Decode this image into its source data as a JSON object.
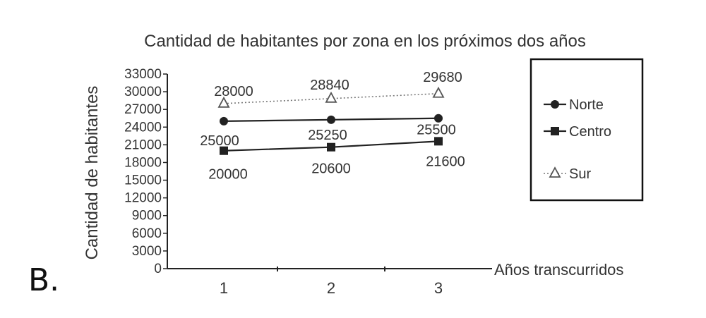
{
  "option_letter": "B.",
  "chart_data": {
    "type": "line",
    "title": "Cantidad de habitantes por zona en los próximos dos años",
    "xlabel": "Años transcurridos",
    "ylabel": "Cantidad de habitantes",
    "categories": [
      "1",
      "2",
      "3"
    ],
    "ylim": [
      0,
      33000
    ],
    "yticks": [
      "0",
      "3000",
      "6000",
      "9000",
      "12000",
      "15000",
      "18000",
      "21000",
      "24000",
      "27000",
      "30000",
      "33000"
    ],
    "grid": false,
    "legend": "right",
    "series": [
      {
        "name": "Norte",
        "values": [
          25000,
          25250,
          25500
        ],
        "labels": [
          "25000",
          "25250",
          "25500"
        ],
        "marker": "circle",
        "style": "solid",
        "color": "#222222"
      },
      {
        "name": "Centro",
        "values": [
          20000,
          20600,
          21600
        ],
        "labels": [
          "20000",
          "20600",
          "21600"
        ],
        "marker": "square",
        "style": "solid",
        "color": "#222222"
      },
      {
        "name": "Sur",
        "values": [
          28000,
          28840,
          29680
        ],
        "labels": [
          "28000",
          "28840",
          "29680"
        ],
        "marker": "triangle",
        "style": "dotted",
        "color": "#777777"
      }
    ]
  }
}
